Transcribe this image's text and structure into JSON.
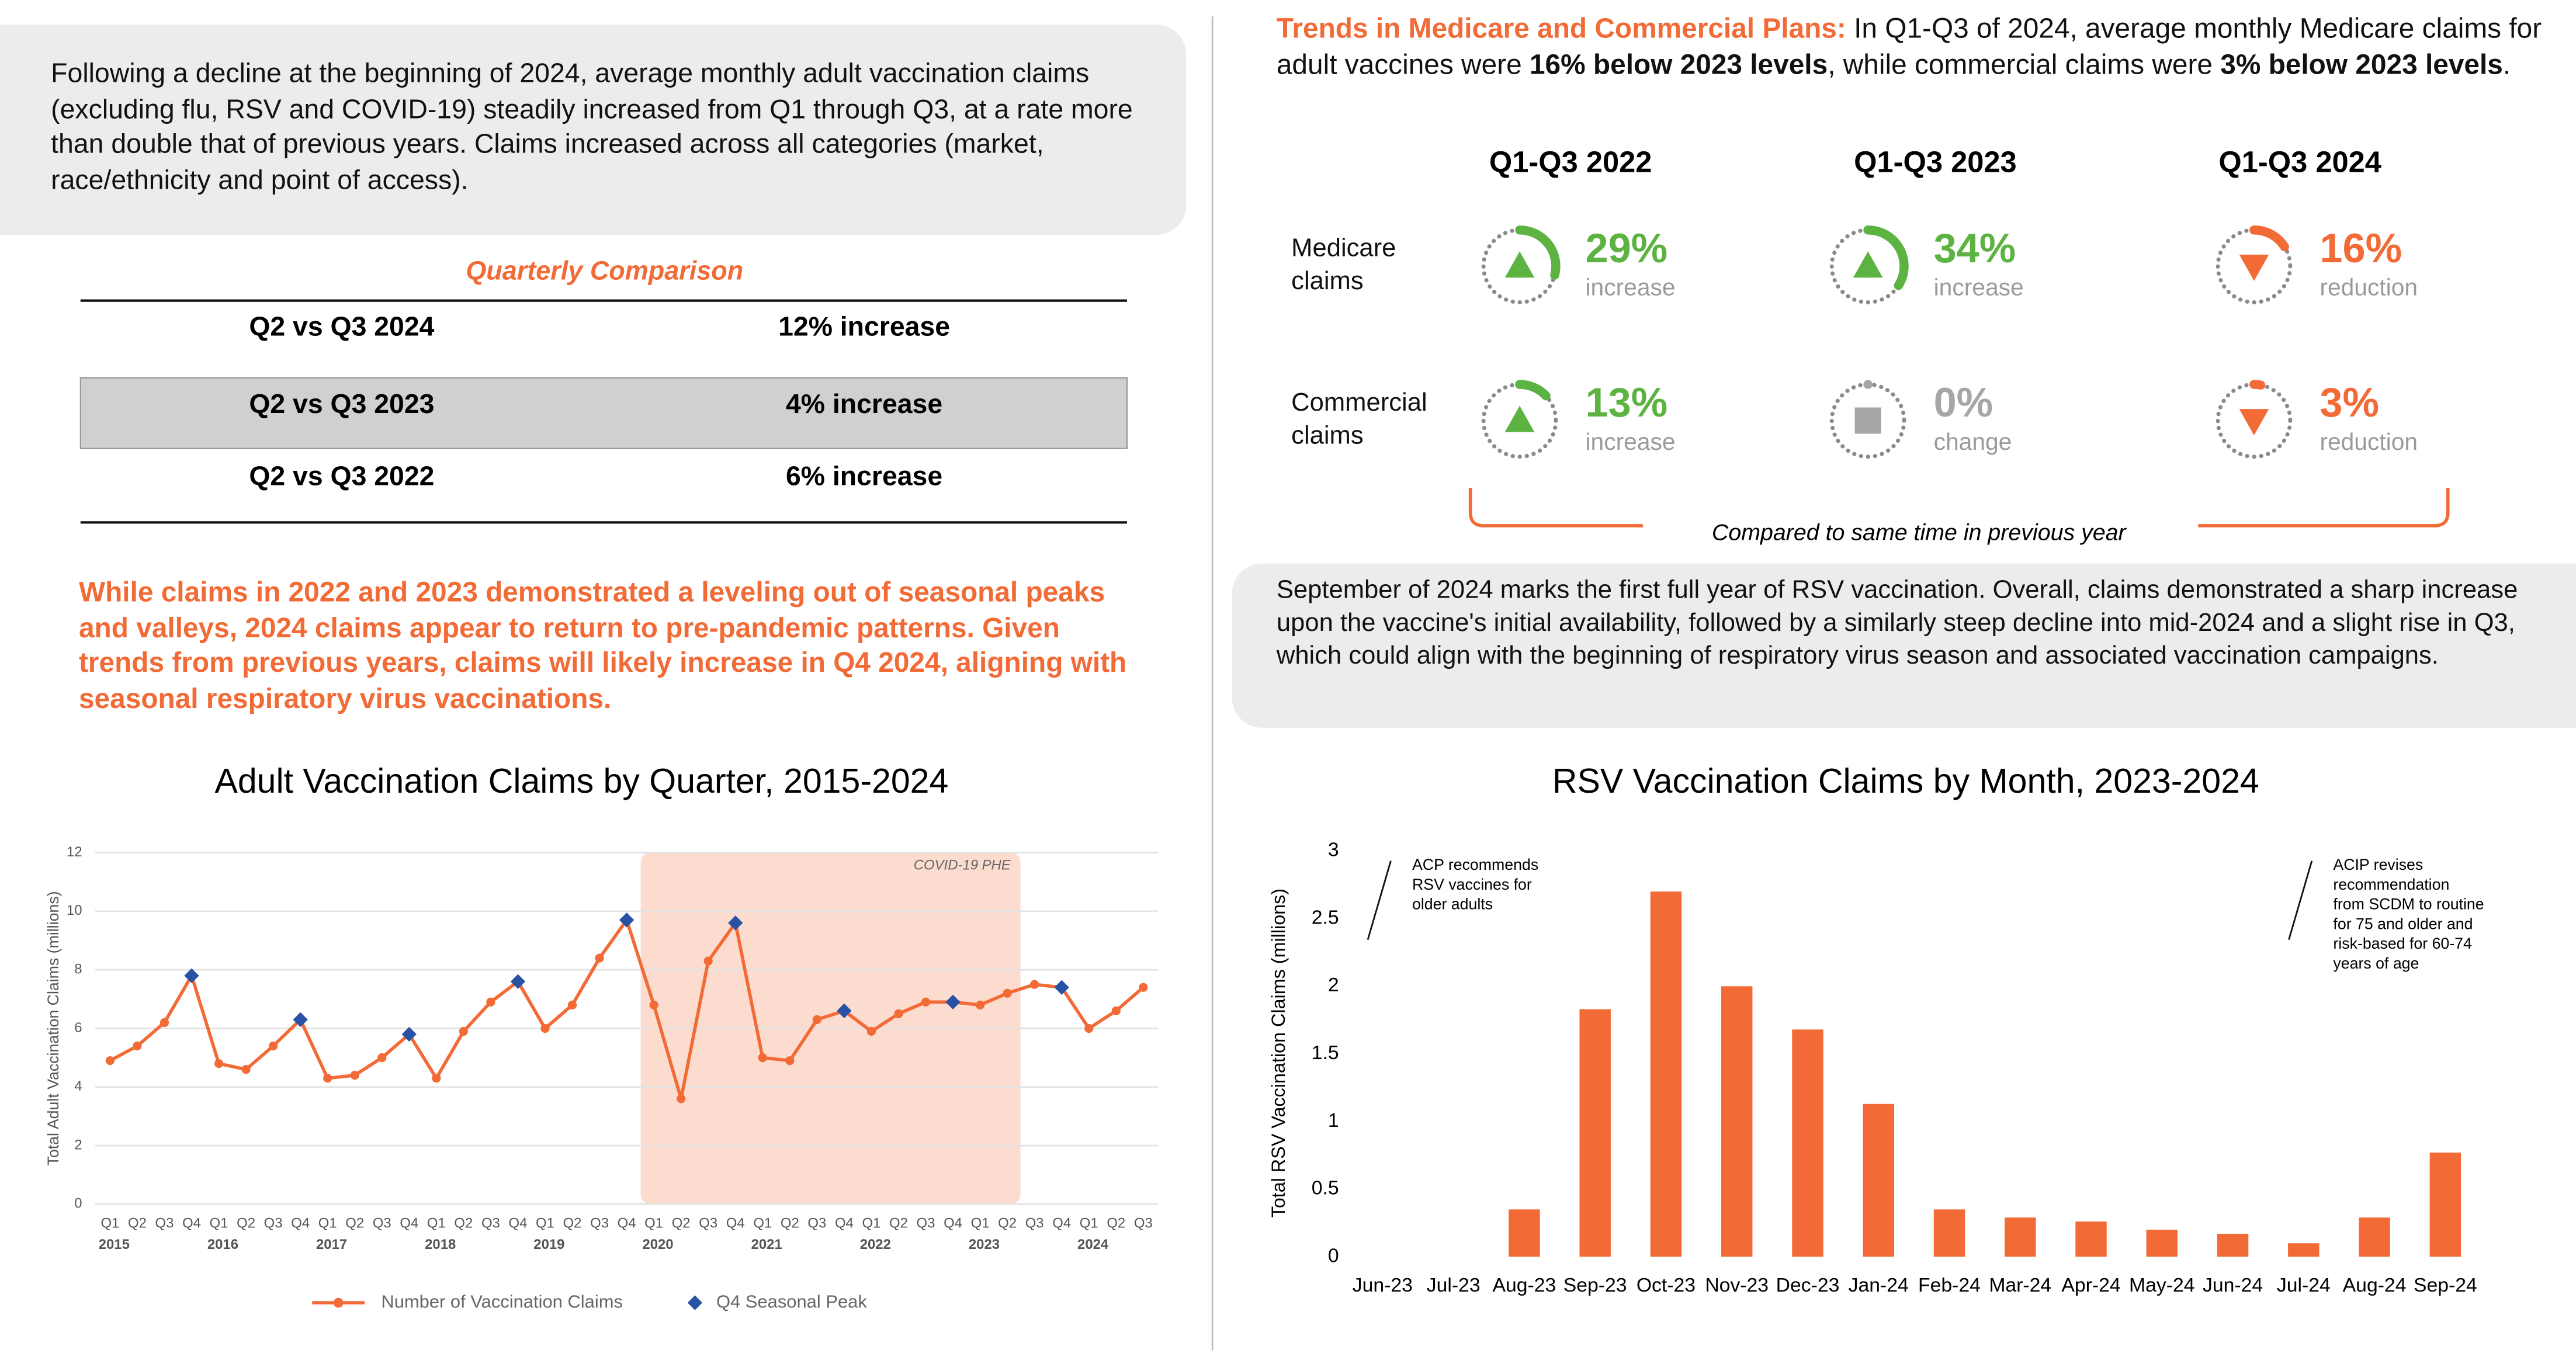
{
  "left": {
    "intro": "Following a decline at the beginning of 2024, average monthly adult vaccination claims (excluding flu, RSV and COVID-19) steadily increased from Q1 through Q3, at a rate more than double that of previous years. Claims increased across all categories (market, race/ethnicity and point of access).",
    "table": {
      "title": "Quarterly Comparison",
      "rows": [
        [
          "Q2 vs Q3 2024",
          "12% increase"
        ],
        [
          "Q2 vs Q3 2023",
          "4% increase"
        ],
        [
          "Q2 vs Q3 2022",
          "6% increase"
        ]
      ]
    },
    "note": "While claims in 2022 and 2023 demonstrated a leveling out of seasonal peaks and valleys, 2024 claims appear to return to pre-pandemic patterns. Given trends from previous years, claims will likely increase in Q4 2024, aligning with seasonal respiratory virus vaccinations."
  },
  "right": {
    "trends": [
      {
        "text": "Trends in Medicare and Commercial Plans:",
        "style": "lead"
      },
      {
        "text": " In Q1-Q3 of 2024, average monthly Medicare claims for adult vaccines were ",
        "style": "normal"
      },
      {
        "text": "16% below 2023 levels",
        "style": "bold"
      },
      {
        "text": ", while commercial claims were ",
        "style": "normal"
      },
      {
        "text": "3% below 2023 levels",
        "style": "bold"
      },
      {
        "text": ".",
        "style": "normal"
      }
    ],
    "kpi": {
      "columns": [
        "Q1-Q3 2022",
        "Q1-Q3 2023",
        "Q1-Q3 2024"
      ],
      "colors": {
        "up": "#5db342",
        "down": "#f26a35",
        "none": "#a6a6a6"
      },
      "rows": [
        {
          "label": "Medicare claims",
          "cells": [
            {
              "value": 29,
              "label": "29%",
              "caption": "increase",
              "direction": "up"
            },
            {
              "value": 34,
              "label": "34%",
              "caption": "increase",
              "direction": "up"
            },
            {
              "value": 16,
              "label": "16%",
              "caption": "reduction",
              "direction": "down"
            }
          ]
        },
        {
          "label": "Commercial claims",
          "cells": [
            {
              "value": 13,
              "label": "13%",
              "caption": "increase",
              "direction": "up"
            },
            {
              "value": 0,
              "label": "0%",
              "caption": "change",
              "direction": "none"
            },
            {
              "value": 3,
              "label": "3%",
              "caption": "reduction",
              "direction": "down"
            }
          ]
        }
      ],
      "footnote": "Compared to same time in previous year"
    },
    "rsv_note": "September of 2024 marks the first full year of RSV vaccination. Overall, claims demonstrated a sharp increase upon the vaccine's initial availability, followed by a similarly steep decline into mid-2024 and a slight rise in Q3, which could align with the beginning of respiratory virus season and associated vaccination campaigns."
  },
  "chart_data": [
    {
      "type": "line",
      "title": "Adult Vaccination Claims by Quarter, 2015-2024",
      "y_label": "Total Adult Vaccination Claims (millions)",
      "categories": [
        "Q1",
        "Q2",
        "Q3",
        "Q4",
        "Q1",
        "Q2",
        "Q3",
        "Q4",
        "Q1",
        "Q2",
        "Q3",
        "Q4",
        "Q1",
        "Q2",
        "Q3",
        "Q4",
        "Q1",
        "Q2",
        "Q3",
        "Q4",
        "Q1",
        "Q2",
        "Q3",
        "Q4",
        "Q1",
        "Q2",
        "Q3",
        "Q4",
        "Q1",
        "Q2",
        "Q3",
        "Q4",
        "Q1",
        "Q2",
        "Q3",
        "Q4",
        "Q1",
        "Q2",
        "Q3"
      ],
      "x_groups": [
        "2015",
        "2016",
        "2017",
        "2018",
        "2019",
        "2020",
        "2021",
        "2022",
        "2023",
        "2024"
      ],
      "series": [
        {
          "name": "Number of Vaccination Claims",
          "color": "#f26a35",
          "marker": "circle",
          "values": [
            4.9,
            5.4,
            6.2,
            7.8,
            4.8,
            4.6,
            5.4,
            6.3,
            4.3,
            4.4,
            5.0,
            5.8,
            4.3,
            5.9,
            6.9,
            7.6,
            6.0,
            6.8,
            8.4,
            9.7,
            6.8,
            3.6,
            8.3,
            9.6,
            5.0,
            4.9,
            6.3,
            6.6,
            5.9,
            6.5,
            6.9,
            6.9,
            6.8,
            7.2,
            7.5,
            7.4,
            6.0,
            6.6,
            7.4
          ]
        },
        {
          "name": "Q4 Seasonal Peak",
          "color": "#2a52a4",
          "marker": "diamond",
          "values": [
            null,
            null,
            null,
            7.8,
            null,
            null,
            null,
            6.3,
            null,
            null,
            null,
            5.8,
            null,
            null,
            null,
            7.6,
            null,
            null,
            null,
            9.7,
            null,
            null,
            null,
            9.6,
            null,
            null,
            null,
            6.6,
            null,
            null,
            null,
            6.9,
            null,
            null,
            null,
            7.4,
            null,
            null,
            null
          ]
        }
      ],
      "ylim": [
        0,
        12
      ],
      "yticks": [
        0,
        2,
        4,
        6,
        8,
        10,
        12
      ],
      "grid": true,
      "shaded": {
        "label": "COVID-19 PHE",
        "color": "#fbdccf"
      }
    },
    {
      "type": "bar",
      "title": "RSV Vaccination Claims by Month, 2023-2024",
      "y_label": "Total RSV Vaccination Claims (millions)",
      "categories": [
        "Jun-23",
        "Jul-23",
        "Aug-23",
        "Sep-23",
        "Oct-23",
        "Nov-23",
        "Dec-23",
        "Jan-24",
        "Feb-24",
        "Mar-24",
        "Apr-24",
        "May-24",
        "Jun-24",
        "Jul-24",
        "Aug-24",
        "Sep-24"
      ],
      "values": [
        0,
        0,
        0.35,
        1.83,
        2.7,
        2.0,
        1.68,
        1.13,
        0.35,
        0.29,
        0.26,
        0.2,
        0.17,
        0.1,
        0.29,
        0.77
      ],
      "color": "#f26a35",
      "ylim": [
        0,
        3
      ],
      "yticks": [
        0,
        0.5,
        1,
        1.5,
        2,
        2.5,
        3
      ],
      "grid": false,
      "annotations": [
        {
          "category": "Jun-23",
          "lines": [
            "ACP recommends",
            "RSV vaccines for",
            "older adults"
          ]
        },
        {
          "category": "Jul-24",
          "lines": [
            "ACIP revises",
            "recommendation",
            "from SCDM to routine",
            "for 75 and older and",
            "risk-based for 60-74",
            "years of age"
          ]
        }
      ]
    }
  ]
}
